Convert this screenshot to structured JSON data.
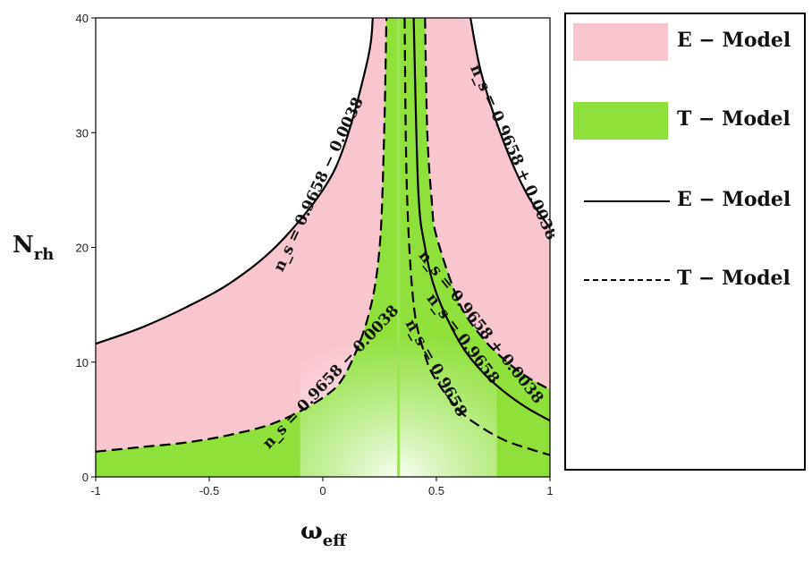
{
  "chart_data": {
    "type": "area",
    "xlabel_main": "ω",
    "xlabel_sub": "eff",
    "ylabel_main": "N",
    "ylabel_sub": "rh",
    "xlim": [
      -1,
      1
    ],
    "ylim": [
      0,
      40
    ],
    "x_ticks": [
      -1,
      -0.5,
      0,
      0.5,
      1
    ],
    "x_tick_labels": [
      "-1",
      "-0.5",
      "0",
      "0.5",
      "1"
    ],
    "y_ticks": [
      0,
      10,
      20,
      30,
      40
    ],
    "y_tick_labels": [
      "0",
      "10",
      "20",
      "30",
      "40"
    ],
    "pole_x": 0.333,
    "regions": [
      {
        "name": "E − Model",
        "color": "#f9c5cf"
      },
      {
        "name": "T − Model",
        "color": "#8ee03a"
      }
    ],
    "series": [
      {
        "model": "E",
        "style": "solid",
        "branch": "left",
        "ns_label": "n_s = 0.9658 − 0.0038",
        "points": [
          [
            -1,
            11.6
          ],
          [
            -0.8,
            13.0
          ],
          [
            -0.6,
            14.8
          ],
          [
            -0.4,
            17.0
          ],
          [
            -0.2,
            20.2
          ],
          [
            0,
            25.0
          ],
          [
            0.1,
            29.2
          ],
          [
            0.2,
            36.6
          ],
          [
            0.22,
            40
          ]
        ]
      },
      {
        "model": "T",
        "style": "dashed",
        "branch": "left",
        "ns_label": "n_s = 0.9658 − 0.0038",
        "points": [
          [
            -1,
            2.2
          ],
          [
            -0.8,
            2.6
          ],
          [
            -0.6,
            3.0
          ],
          [
            -0.4,
            3.7
          ],
          [
            -0.2,
            4.8
          ],
          [
            0,
            6.9
          ],
          [
            0.1,
            9.0
          ],
          [
            0.2,
            14.0
          ],
          [
            0.25,
            20.0
          ],
          [
            0.27,
            30.0
          ],
          [
            0.28,
            40
          ]
        ]
      },
      {
        "model": "T",
        "style": "dashed",
        "branch": "right",
        "ns_label": "n_s = 0.9658",
        "points": [
          [
            0.36,
            40
          ],
          [
            0.37,
            25.0
          ],
          [
            0.4,
            15.0
          ],
          [
            0.45,
            10.6
          ],
          [
            0.5,
            8.4
          ],
          [
            0.6,
            5.8
          ],
          [
            0.7,
            4.3
          ],
          [
            0.8,
            3.2
          ],
          [
            0.9,
            2.5
          ],
          [
            1,
            1.9
          ]
        ]
      },
      {
        "model": "E",
        "style": "solid",
        "branch": "right",
        "ns_label": "n_s = 0.9658",
        "points": [
          [
            0.4,
            40
          ],
          [
            0.42,
            25.0
          ],
          [
            0.45,
            20.0
          ],
          [
            0.5,
            16.0
          ],
          [
            0.6,
            11.8
          ],
          [
            0.7,
            9.2
          ],
          [
            0.8,
            7.4
          ],
          [
            0.9,
            6.0
          ],
          [
            1,
            4.9
          ]
        ]
      },
      {
        "model": "T",
        "style": "dashed",
        "branch": "right",
        "ns_label": "n_s = 0.9658 + 0.0038",
        "points": [
          [
            0.45,
            40
          ],
          [
            0.46,
            30.0
          ],
          [
            0.48,
            24.0
          ],
          [
            0.5,
            21.0
          ],
          [
            0.6,
            15.2
          ],
          [
            0.7,
            12.2
          ],
          [
            0.8,
            10.2
          ],
          [
            0.9,
            8.7
          ],
          [
            1,
            7.6
          ]
        ]
      },
      {
        "model": "E",
        "style": "solid",
        "branch": "right",
        "ns_label": "n_s = 0.9658 + 0.0038",
        "points": [
          [
            0.65,
            40
          ],
          [
            0.7,
            35.0
          ],
          [
            0.8,
            29.0
          ],
          [
            0.9,
            24.6
          ],
          [
            1,
            21.7
          ]
        ]
      }
    ],
    "labels": [
      {
        "text": "n_s = 0.9658 − 0.0038",
        "series": 0
      },
      {
        "text": "n_s = 0.9658 − 0.0038",
        "series": 1
      },
      {
        "text": "n_s = 0.9658",
        "series": 2
      },
      {
        "text": "n_s = 0.9658",
        "series": 3
      },
      {
        "text": "n_s = 0.9658 + 0.0038",
        "series": 4
      },
      {
        "text": "n_s = 0.9658 + 0.0038",
        "series": 5
      }
    ]
  },
  "legend": {
    "items": [
      {
        "label": "E − Model",
        "kind": "fill",
        "color": "#f9c5cf"
      },
      {
        "label": "T − Model",
        "kind": "fill",
        "color": "#8ee03a"
      },
      {
        "label": "E − Model",
        "kind": "solid",
        "color": "#000000"
      },
      {
        "label": "T − Model",
        "kind": "dashed",
        "color": "#000000"
      }
    ]
  }
}
